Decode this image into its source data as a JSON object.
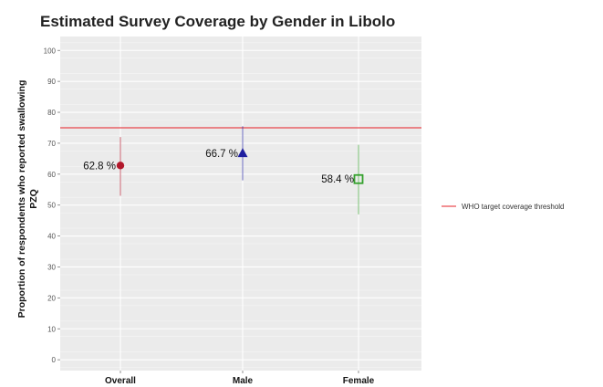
{
  "chart_data": {
    "type": "scatter",
    "title": "Estimated Survey Coverage by Gender in Libolo",
    "xlabel": "",
    "ylabel_lines": [
      "Proportion of respondents who reported swallowing",
      "PZQ"
    ],
    "ylim": [
      0,
      100
    ],
    "y_ticks": [
      0,
      10,
      20,
      30,
      40,
      50,
      60,
      70,
      80,
      90,
      100
    ],
    "categories": [
      "Overall",
      "Male",
      "Female"
    ],
    "points": [
      {
        "category": "Overall",
        "value": 62.8,
        "lower": 53,
        "upper": 72,
        "label": "62.8 %",
        "color": "#b2182b",
        "shape": "circle"
      },
      {
        "category": "Male",
        "value": 66.7,
        "lower": 58,
        "upper": 75.5,
        "label": "66.7 %",
        "color": "#1f1fa0",
        "shape": "triangle"
      },
      {
        "category": "Female",
        "value": 58.4,
        "lower": 47,
        "upper": 69.5,
        "label": "58.4 %",
        "color": "#33a02c",
        "shape": "square"
      }
    ],
    "reference_line": {
      "value": 75,
      "label": "WHO target coverage threshold",
      "color": "#e8474b"
    },
    "grid": true,
    "legend_position": "right"
  }
}
